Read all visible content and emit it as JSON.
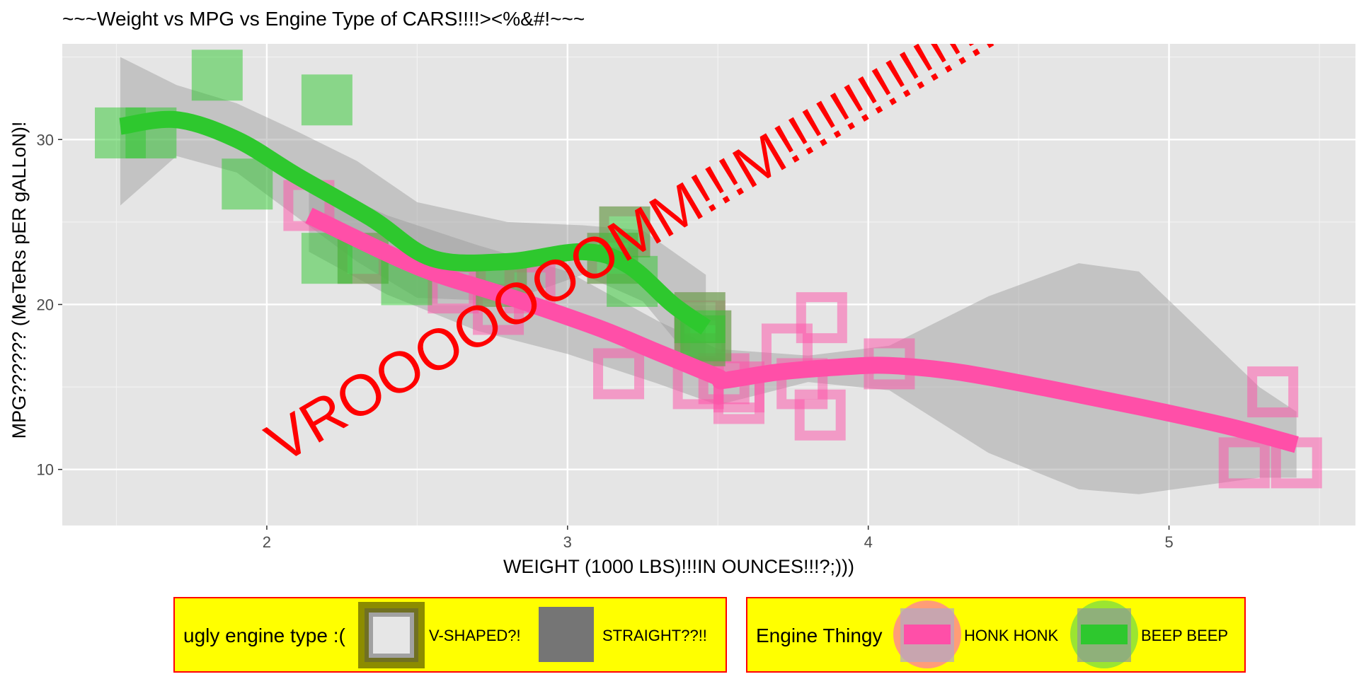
{
  "chart_data": {
    "type": "scatter",
    "title": "~~~Weight vs MPG vs Engine Type of CARS!!!!><%&#!~~~",
    "xlabel": "WEIGHT (1000 LBS)!!!IN OUNCES!!!?;)))",
    "ylabel": "MPG?????? (MeTeRs pER gALLoN)!",
    "xlim": [
      1.32,
      5.62
    ],
    "ylim": [
      6.6,
      35.8
    ],
    "x_ticks": [
      2,
      3,
      4,
      5
    ],
    "y_ticks": [
      10,
      20,
      30
    ],
    "grid": true,
    "annotation": {
      "text": "VROOOOOOOMM!!!M!!!!!!!!!!!!!!!",
      "color": "#ff0000"
    },
    "shape_legend": {
      "title": "ugly engine type :(",
      "entries": [
        {
          "label": "V-SHAPED?!",
          "shape": "hollow-square"
        },
        {
          "label": "STRAIGHT??!!",
          "shape": "filled-square"
        }
      ]
    },
    "color_legend": {
      "title": "Engine Thingy",
      "entries": [
        {
          "label": "HONK HONK",
          "color": "#ff4fa8"
        },
        {
          "label": "BEEP BEEP",
          "color": "#2ec82e"
        }
      ]
    },
    "series": [
      {
        "label_ref": "V-SHAPED?! / HONK HONK",
        "color": "#ff4fa8",
        "shape": "hollow-square",
        "points": [
          [
            2.62,
            21.0
          ],
          [
            2.875,
            21.0
          ],
          [
            2.32,
            22.8
          ],
          [
            3.44,
            18.7
          ],
          [
            3.46,
            18.1
          ],
          [
            3.57,
            14.3
          ],
          [
            3.19,
            24.4
          ],
          [
            3.15,
            22.8
          ],
          [
            3.44,
            19.2
          ],
          [
            3.44,
            17.8
          ],
          [
            4.07,
            16.4
          ],
          [
            3.73,
            17.3
          ],
          [
            3.78,
            15.2
          ],
          [
            5.25,
            10.4
          ],
          [
            5.424,
            10.4
          ],
          [
            5.345,
            14.7
          ],
          [
            3.52,
            15.5
          ],
          [
            3.435,
            15.2
          ],
          [
            3.84,
            13.3
          ],
          [
            3.845,
            19.2
          ],
          [
            2.14,
            26.0
          ],
          [
            3.17,
            15.8
          ],
          [
            2.77,
            19.7
          ],
          [
            3.57,
            15.0
          ],
          [
            2.78,
            21.4
          ]
        ],
        "smooth": [
          [
            2.14,
            25.4
          ],
          [
            2.5,
            22.3
          ],
          [
            2.8,
            20.5
          ],
          [
            3.1,
            18.6
          ],
          [
            3.3,
            17.1
          ],
          [
            3.5,
            15.6
          ],
          [
            3.52,
            15.4
          ],
          [
            3.7,
            15.9
          ],
          [
            3.9,
            16.2
          ],
          [
            4.07,
            16.3
          ],
          [
            4.3,
            15.9
          ],
          [
            4.6,
            14.9
          ],
          [
            4.9,
            13.8
          ],
          [
            5.2,
            12.6
          ],
          [
            5.424,
            11.5
          ]
        ],
        "ribbon_upper": [
          [
            2.14,
            27.6
          ],
          [
            2.4,
            25.4
          ],
          [
            2.7,
            23.6
          ],
          [
            3.0,
            22.0
          ],
          [
            3.3,
            19.0
          ],
          [
            3.5,
            17.3
          ],
          [
            3.8,
            16.9
          ],
          [
            4.07,
            17.5
          ],
          [
            4.4,
            20.5
          ],
          [
            4.7,
            22.5
          ],
          [
            4.9,
            22.0
          ],
          [
            5.1,
            18.5
          ],
          [
            5.3,
            15.0
          ],
          [
            5.424,
            13.5
          ]
        ],
        "ribbon_lower": [
          [
            2.14,
            23.2
          ],
          [
            2.4,
            20.6
          ],
          [
            2.7,
            18.4
          ],
          [
            3.0,
            17.0
          ],
          [
            3.3,
            15.2
          ],
          [
            3.5,
            13.9
          ],
          [
            3.8,
            15.3
          ],
          [
            4.07,
            14.8
          ],
          [
            4.4,
            11.0
          ],
          [
            4.7,
            8.8
          ],
          [
            4.9,
            8.5
          ],
          [
            5.1,
            9.0
          ],
          [
            5.3,
            9.5
          ],
          [
            5.424,
            9.5
          ]
        ]
      },
      {
        "label_ref": "STRAIGHT??!! / BEEP BEEP",
        "color": "#2ec82e",
        "shape": "filled-square",
        "points": [
          [
            1.513,
            30.4
          ],
          [
            1.615,
            30.4
          ],
          [
            1.835,
            33.9
          ],
          [
            1.935,
            27.3
          ],
          [
            2.2,
            32.4
          ],
          [
            2.2,
            22.8
          ],
          [
            2.32,
            22.8
          ],
          [
            2.465,
            21.5
          ],
          [
            2.78,
            21.4
          ],
          [
            3.15,
            22.8
          ],
          [
            3.19,
            24.4
          ],
          [
            3.215,
            21.4
          ],
          [
            3.44,
            19.2
          ],
          [
            3.44,
            17.8
          ],
          [
            3.46,
            18.1
          ]
        ],
        "smooth": [
          [
            1.513,
            30.8
          ],
          [
            1.7,
            31.2
          ],
          [
            1.9,
            30.0
          ],
          [
            2.1,
            27.8
          ],
          [
            2.35,
            25.2
          ],
          [
            2.55,
            22.8
          ],
          [
            2.8,
            22.6
          ],
          [
            3.05,
            23.2
          ],
          [
            3.2,
            22.4
          ],
          [
            3.35,
            20.0
          ],
          [
            3.46,
            18.6
          ]
        ],
        "ribbon_upper": [
          [
            1.513,
            35.0
          ],
          [
            1.7,
            33.3
          ],
          [
            1.9,
            32.2
          ],
          [
            2.1,
            30.5
          ],
          [
            2.3,
            28.7
          ],
          [
            2.5,
            26.2
          ],
          [
            2.8,
            25.0
          ],
          [
            3.05,
            24.8
          ],
          [
            3.25,
            24.5
          ],
          [
            3.46,
            21.8
          ]
        ],
        "ribbon_lower": [
          [
            1.513,
            26.0
          ],
          [
            1.7,
            29.0
          ],
          [
            1.9,
            28.0
          ],
          [
            2.1,
            25.3
          ],
          [
            2.3,
            22.6
          ],
          [
            2.5,
            20.4
          ],
          [
            2.8,
            20.2
          ],
          [
            3.05,
            21.8
          ],
          [
            3.25,
            20.2
          ],
          [
            3.46,
            15.6
          ]
        ]
      }
    ]
  }
}
